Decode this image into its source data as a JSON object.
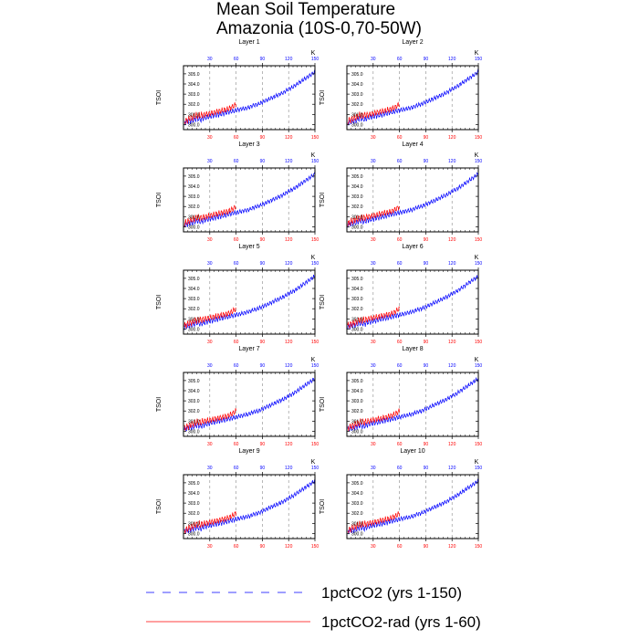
{
  "page": {
    "title_line1": "Mean Soil Temperature",
    "title_line2": "Amazonia (10S-0,70-50W)"
  },
  "colors": {
    "series1": "#0000ff",
    "series2": "#ff0000",
    "grid": "#888888",
    "axis": "#000000"
  },
  "axis_text": {
    "ylabel": "TSOI",
    "k_label": "K"
  },
  "legend": [
    {
      "label": "1pctCO2 (yrs 1-150)",
      "color": "#0000ff",
      "style": "dashed"
    },
    {
      "label": "1pctCO2-rad (yrs 1-60)",
      "color": "#ff0000",
      "style": "solid"
    }
  ],
  "chart_data": {
    "type": "line",
    "panels": [
      "Layer 1",
      "Layer 2",
      "Layer 3",
      "Layer 4",
      "Layer 5",
      "Layer 6",
      "Layer 7",
      "Layer 8",
      "Layer 9",
      "Layer 10"
    ],
    "xlim": [
      0,
      150
    ],
    "ylim": [
      299.5,
      305.8
    ],
    "top_ticks": [
      "30",
      "60",
      "90",
      "120",
      "150"
    ],
    "top_tick_values": [
      30,
      60,
      90,
      120,
      150
    ],
    "bottom_ticks": [
      "30",
      "60",
      "90",
      "120",
      "150"
    ],
    "bottom_tick_values": [
      30,
      60,
      90,
      120,
      150
    ],
    "y_ticks": [
      "300.0",
      "301.0",
      "302.0",
      "303.0",
      "304.0",
      "305.0"
    ],
    "y_tick_values": [
      300,
      301,
      302,
      303,
      304,
      305
    ],
    "vertical_grid_x": [
      30,
      60,
      90,
      120
    ],
    "series": [
      {
        "name": "1pctCO2 (yrs 1-150)",
        "color": "#0000ff",
        "x": [
          1,
          5,
          10,
          15,
          20,
          25,
          30,
          35,
          40,
          45,
          50,
          55,
          60,
          65,
          70,
          75,
          80,
          85,
          90,
          95,
          100,
          105,
          110,
          115,
          120,
          125,
          130,
          135,
          140,
          145,
          150
        ],
        "values": [
          300.2,
          300.3,
          300.4,
          300.6,
          300.5,
          300.7,
          300.8,
          300.9,
          301.0,
          301.1,
          301.2,
          301.3,
          301.4,
          301.5,
          301.6,
          301.7,
          301.9,
          302.0,
          302.2,
          302.4,
          302.6,
          302.8,
          303.0,
          303.2,
          303.5,
          303.7,
          304.0,
          304.3,
          304.6,
          304.9,
          305.2
        ],
        "amplitude": [
          0.4,
          0.4,
          0.4,
          0.4,
          0.4,
          0.4,
          0.4,
          0.4,
          0.4,
          0.4,
          0.35,
          0.35,
          0.35,
          0.3,
          0.3,
          0.3,
          0.3,
          0.3,
          0.3,
          0.3,
          0.3,
          0.3,
          0.3,
          0.3,
          0.3,
          0.3,
          0.3,
          0.3,
          0.3,
          0.3,
          0.3
        ]
      },
      {
        "name": "1pctCO2-rad (yrs 1-60)",
        "color": "#ff0000",
        "x": [
          1,
          5,
          10,
          15,
          20,
          25,
          30,
          35,
          40,
          45,
          50,
          55,
          60
        ],
        "values": [
          300.3,
          300.5,
          300.7,
          300.9,
          300.9,
          301.0,
          301.1,
          301.2,
          301.3,
          301.4,
          301.5,
          301.7,
          302.0
        ],
        "amplitude": [
          0.5,
          0.5,
          0.5,
          0.5,
          0.5,
          0.4,
          0.4,
          0.4,
          0.4,
          0.4,
          0.4,
          0.4,
          0.4
        ]
      }
    ]
  }
}
